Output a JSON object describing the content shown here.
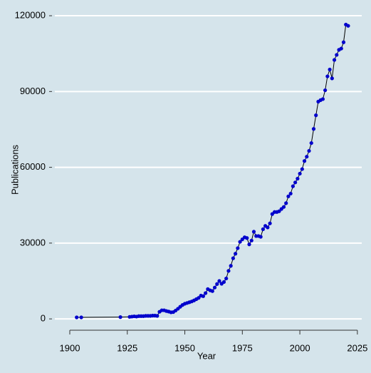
{
  "chart_data": {
    "type": "line",
    "x_label": "Year",
    "y_label": "Publications",
    "x": [
      1903,
      1905,
      1922,
      1926,
      1927,
      1928,
      1929,
      1930,
      1931,
      1932,
      1933,
      1934,
      1935,
      1936,
      1937,
      1938,
      1939,
      1940,
      1941,
      1942,
      1943,
      1944,
      1945,
      1946,
      1947,
      1948,
      1949,
      1950,
      1951,
      1952,
      1953,
      1954,
      1955,
      1956,
      1957,
      1958,
      1959,
      1960,
      1961,
      1962,
      1963,
      1964,
      1965,
      1966,
      1967,
      1968,
      1969,
      1970,
      1971,
      1972,
      1973,
      1974,
      1975,
      1976,
      1977,
      1978,
      1979,
      1980,
      1981,
      1982,
      1983,
      1984,
      1985,
      1986,
      1987,
      1988,
      1989,
      1990,
      1991,
      1992,
      1993,
      1994,
      1995,
      1996,
      1997,
      1998,
      1999,
      2000,
      2001,
      2002,
      2003,
      2004,
      2005,
      2006,
      2007,
      2008,
      2009,
      2010,
      2011,
      2012,
      2013,
      2014,
      2015,
      2016,
      2017,
      2018,
      2019,
      2020,
      2021
    ],
    "values": [
      600,
      600,
      700,
      800,
      900,
      1000,
      900,
      1100,
      1100,
      1100,
      1200,
      1200,
      1200,
      1300,
      1300,
      1200,
      2800,
      3400,
      3400,
      3100,
      2900,
      2600,
      2700,
      3300,
      4000,
      4800,
      5500,
      6000,
      6300,
      6600,
      6900,
      7300,
      7800,
      8300,
      9200,
      9000,
      10200,
      11800,
      11300,
      11000,
      12400,
      13800,
      15000,
      13900,
      14600,
      16000,
      19000,
      21000,
      24000,
      25800,
      28000,
      30500,
      31500,
      32300,
      32000,
      29500,
      31000,
      34500,
      32800,
      32800,
      32500,
      35500,
      36800,
      36200,
      37800,
      41500,
      42300,
      42300,
      42600,
      43500,
      44300,
      45800,
      48500,
      49600,
      52500,
      54000,
      55500,
      57500,
      59300,
      62500,
      64200,
      66500,
      69600,
      75200,
      80600,
      86000,
      86600,
      87000,
      90500,
      96000,
      98700,
      95200,
      102500,
      104500,
      106500,
      107000,
      109500,
      116500,
      116000
    ],
    "line_color": "#000000",
    "point_color": "#0000cc",
    "xlim": [
      1893.5,
      2026.9
    ],
    "ylim": [
      -4200,
      123400
    ],
    "xticks": [
      1900,
      1925,
      1950,
      1975,
      2000,
      2025
    ],
    "yticks": [
      0,
      30000,
      60000,
      90000,
      120000
    ],
    "grid": true
  }
}
